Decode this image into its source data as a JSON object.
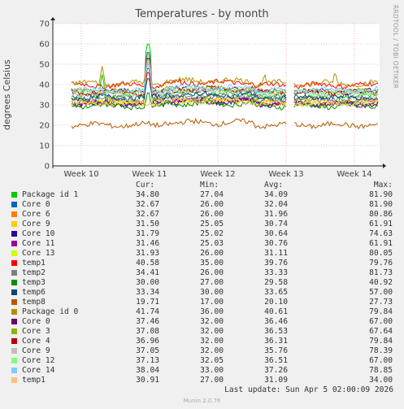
{
  "header": {
    "title": "Temperatures - by month",
    "side_label": "RRDTOOL / TOBI OETIKER"
  },
  "legend": {
    "columns": [
      "Cur:",
      "Min:",
      "Avg:",
      "Max:"
    ],
    "rows": [
      {
        "name": "Package id 1",
        "color": "#00cc00",
        "cur": "34.80",
        "min": "27.04",
        "avg": "34.09",
        "max": "81.90"
      },
      {
        "name": "Core 0",
        "color": "#0066b3",
        "cur": "32.67",
        "min": "26.00",
        "avg": "32.04",
        "max": "81.90"
      },
      {
        "name": "Core 6",
        "color": "#ff8000",
        "cur": "32.67",
        "min": "26.00",
        "avg": "31.96",
        "max": "80.86"
      },
      {
        "name": "Core 9",
        "color": "#ffcc00",
        "cur": "31.50",
        "min": "25.05",
        "avg": "30.74",
        "max": "61.91"
      },
      {
        "name": "Core 10",
        "color": "#330099",
        "cur": "31.79",
        "min": "25.02",
        "avg": "30.64",
        "max": "74.63"
      },
      {
        "name": "Core 11",
        "color": "#990099",
        "cur": "31.46",
        "min": "25.03",
        "avg": "30.76",
        "max": "61.91"
      },
      {
        "name": "Core 13",
        "color": "#ccff00",
        "cur": "31.93",
        "min": "26.00",
        "avg": "31.11",
        "max": "80.05"
      },
      {
        "name": "temp1",
        "color": "#ff0000",
        "cur": "40.58",
        "min": "35.00",
        "avg": "39.76",
        "max": "79.76"
      },
      {
        "name": "temp2",
        "color": "#808080",
        "cur": "34.41",
        "min": "26.00",
        "avg": "33.33",
        "max": "81.73"
      },
      {
        "name": "temp3",
        "color": "#008f00",
        "cur": "30.00",
        "min": "27.00",
        "avg": "29.58",
        "max": "40.92"
      },
      {
        "name": "temp6",
        "color": "#00487d",
        "cur": "33.34",
        "min": "30.00",
        "avg": "33.65",
        "max": "57.00"
      },
      {
        "name": "temp8",
        "color": "#b35a00",
        "cur": "19.71",
        "min": "17.00",
        "avg": "20.10",
        "max": "27.73"
      },
      {
        "name": "Package id 0",
        "color": "#b38f00",
        "cur": "41.74",
        "min": "36.00",
        "avg": "40.61",
        "max": "79.84"
      },
      {
        "name": "Core 0",
        "color": "#6b006b",
        "cur": "37.46",
        "min": "32.00",
        "avg": "36.46",
        "max": "67.00"
      },
      {
        "name": "Core 3",
        "color": "#8fb300",
        "cur": "37.08",
        "min": "32.00",
        "avg": "36.53",
        "max": "67.64"
      },
      {
        "name": "Core 4",
        "color": "#b30000",
        "cur": "36.96",
        "min": "32.00",
        "avg": "36.31",
        "max": "79.84"
      },
      {
        "name": "Core 9",
        "color": "#bebebe",
        "cur": "37.05",
        "min": "32.00",
        "avg": "35.76",
        "max": "78.39"
      },
      {
        "name": "Core 12",
        "color": "#80ff80",
        "cur": "37.13",
        "min": "32.05",
        "avg": "36.51",
        "max": "67.00"
      },
      {
        "name": "Core 14",
        "color": "#80c9ff",
        "cur": "38.04",
        "min": "33.00",
        "avg": "37.26",
        "max": "78.85"
      },
      {
        "name": "temp1",
        "color": "#ffc080",
        "cur": "30.91",
        "min": "27.00",
        "avg": "31.09",
        "max": "34.00"
      }
    ]
  },
  "footer": {
    "last_update": "Last update: Sun Apr  5 02:00:09 2026",
    "brand": "Munin 2.0.76"
  },
  "chart_data": {
    "type": "line",
    "title": "Temperatures - by month",
    "ylabel": "degrees Celsius",
    "xlabel": "",
    "ylim": [
      0,
      70
    ],
    "yticks": [
      0,
      10,
      20,
      30,
      40,
      50,
      60,
      70
    ],
    "x_categories": [
      "Week 10",
      "Week 11",
      "Week 12",
      "Week 13",
      "Week 14"
    ],
    "grid": true,
    "series": [
      {
        "name": "Package id 1",
        "color": "#00cc00",
        "level": 34.1,
        "spikes": [
          [
            0.25,
            62
          ],
          [
            0.1,
            45
          ]
        ]
      },
      {
        "name": "Core 0",
        "color": "#0066b3",
        "level": 32.0,
        "spikes": [
          [
            0.25,
            58
          ]
        ]
      },
      {
        "name": "Core 6",
        "color": "#ff8000",
        "level": 31.9,
        "spikes": [
          [
            0.25,
            55
          ]
        ]
      },
      {
        "name": "Core 9",
        "color": "#ffcc00",
        "level": 30.7,
        "spikes": [
          [
            0.25,
            50
          ]
        ]
      },
      {
        "name": "Core 10",
        "color": "#330099",
        "level": 30.6,
        "spikes": [
          [
            0.25,
            52
          ]
        ]
      },
      {
        "name": "Core 11",
        "color": "#990099",
        "level": 30.7,
        "spikes": [
          [
            0.25,
            50
          ]
        ]
      },
      {
        "name": "Core 13",
        "color": "#ccff00",
        "level": 31.1,
        "spikes": [
          [
            0.25,
            56
          ]
        ]
      },
      {
        "name": "temp1",
        "color": "#ff0000",
        "level": 39.7,
        "spikes": [
          [
            0.25,
            48
          ]
        ]
      },
      {
        "name": "temp2",
        "color": "#808080",
        "level": 33.3,
        "spikes": [
          [
            0.25,
            57
          ]
        ]
      },
      {
        "name": "temp3",
        "color": "#008f00",
        "level": 29.5,
        "spikes": [
          [
            0.25,
            38
          ]
        ]
      },
      {
        "name": "temp6",
        "color": "#00487d",
        "level": 33.6,
        "spikes": [
          [
            0.25,
            45
          ]
        ]
      },
      {
        "name": "temp8",
        "color": "#b35a00",
        "level": 20.1,
        "spikes": []
      },
      {
        "name": "Package id 0",
        "color": "#b38f00",
        "level": 40.6,
        "spikes": [
          [
            0.1,
            49
          ],
          [
            0.25,
            54
          ],
          [
            0.63,
            46
          ],
          [
            0.86,
            47
          ]
        ]
      },
      {
        "name": "Core 0",
        "color": "#6b006b",
        "level": 36.4,
        "spikes": [
          [
            0.25,
            52
          ]
        ]
      },
      {
        "name": "Core 3",
        "color": "#8fb300",
        "level": 36.5,
        "spikes": [
          [
            0.25,
            53
          ]
        ]
      },
      {
        "name": "Core 4",
        "color": "#b30000",
        "level": 36.3,
        "spikes": [
          [
            0.25,
            55
          ]
        ]
      },
      {
        "name": "Core 9",
        "color": "#bebebe",
        "level": 35.7,
        "spikes": [
          [
            0.25,
            54
          ]
        ]
      },
      {
        "name": "Core 12",
        "color": "#80ff80",
        "level": 36.5,
        "spikes": [
          [
            0.25,
            51
          ]
        ]
      },
      {
        "name": "Core 14",
        "color": "#80c9ff",
        "level": 37.2,
        "spikes": [
          [
            0.25,
            52
          ]
        ]
      },
      {
        "name": "temp1",
        "color": "#ffc080",
        "level": 31.0,
        "spikes": []
      }
    ],
    "gap_fraction": [
      0.705,
      0.725
    ]
  }
}
